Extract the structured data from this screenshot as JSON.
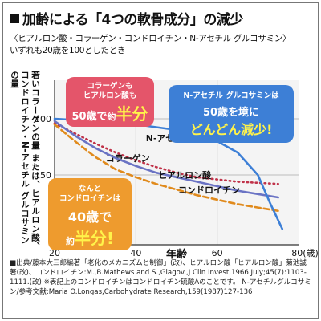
{
  "title": "加齢による「4つの軟骨成分」の減少",
  "subtitle": "〈ヒアルロン酸・コラーゲン・コンドロイチン・N-アセチル グルコサミン〉",
  "note": "いずれも20歳を100としたとき",
  "ylabel": "若いコラーゲンの量 または、ヒアルロン酸、コンドロイチン・N-アセチル グルコサミンの量",
  "xlabel": "年齢",
  "callouts": {
    "collagen": {
      "line1": "コラーゲンも",
      "line2": "ヒアルロン酸も",
      "age": "50歳で",
      "about": "約",
      "half": "半分"
    },
    "nacetyl": {
      "line1": "N-アセチル グルコサミンは",
      "age": "50歳を境に",
      "drop": "どんどん減少!"
    },
    "chondroitin": {
      "line1": "なんと",
      "line2": "コンドロイチンは",
      "age": "40歳で",
      "about": "約",
      "half": "半分!"
    }
  },
  "source": "■出典/藤本大三郎編著「老化のメカニズムと制御」(改)、ヒアルロン酸「ヒアルロン酸」菊池誠著(改)、コンドロイチン:M.,B.Mathews and S.,Glagov.,J Clin Invest,1966 July;45(7):1103-1111.(改) ※表記上のコンドロイチンはコンドロイチン硫酸Aのことです。 N-アセチルグルコサミン/参考文献:Maria O.Longas,Carbohydrate Research,159(1987)127-136",
  "chart_data": {
    "type": "line",
    "xlabel": "年齢",
    "ylabel": "若いコラーゲンの量 または、ヒアルロン酸、コンドロイチン・N-アセチル グルコサミンの量",
    "xlim": [
      20,
      80
    ],
    "ylim": [
      0,
      100
    ],
    "x_ticks": [
      "20",
      "40",
      "60",
      "80(歳)"
    ],
    "y_ticks": [
      "100",
      "50"
    ],
    "grid": true,
    "series": [
      {
        "name": "コラーゲン",
        "color": "#c0334a",
        "style": "dotted",
        "x": [
          20,
          25,
          30,
          35,
          40,
          45,
          50,
          55,
          60,
          65,
          70,
          75
        ],
        "y": [
          96,
          87,
          78,
          70,
          63,
          57,
          52,
          48,
          46,
          44,
          43,
          42
        ]
      },
      {
        "name": "ヒアルロン酸",
        "color": "#6a73c4",
        "style": "solid",
        "x": [
          20,
          25,
          30,
          35,
          40,
          45,
          50,
          55,
          60,
          65,
          70,
          75
        ],
        "y": [
          98,
          85,
          74,
          65,
          58,
          52,
          48,
          44,
          40,
          36,
          33,
          30
        ]
      },
      {
        "name": "コンドロイチン",
        "color": "#e08a1c",
        "style": "dashed",
        "x": [
          20,
          25,
          30,
          35,
          40,
          45,
          50,
          55,
          60,
          65,
          70,
          75
        ],
        "y": [
          95,
          80,
          66,
          55,
          48,
          42,
          37,
          32,
          28,
          24,
          21,
          18
        ]
      },
      {
        "name": "N-アセチル グルコサミン",
        "color": "#3d7fd6",
        "style": "solid",
        "x": [
          20,
          30,
          40,
          50,
          55,
          60,
          65,
          70,
          73,
          76
        ],
        "y": [
          100,
          98,
          95,
          90,
          86,
          80,
          70,
          50,
          25,
          2
        ]
      }
    ]
  }
}
